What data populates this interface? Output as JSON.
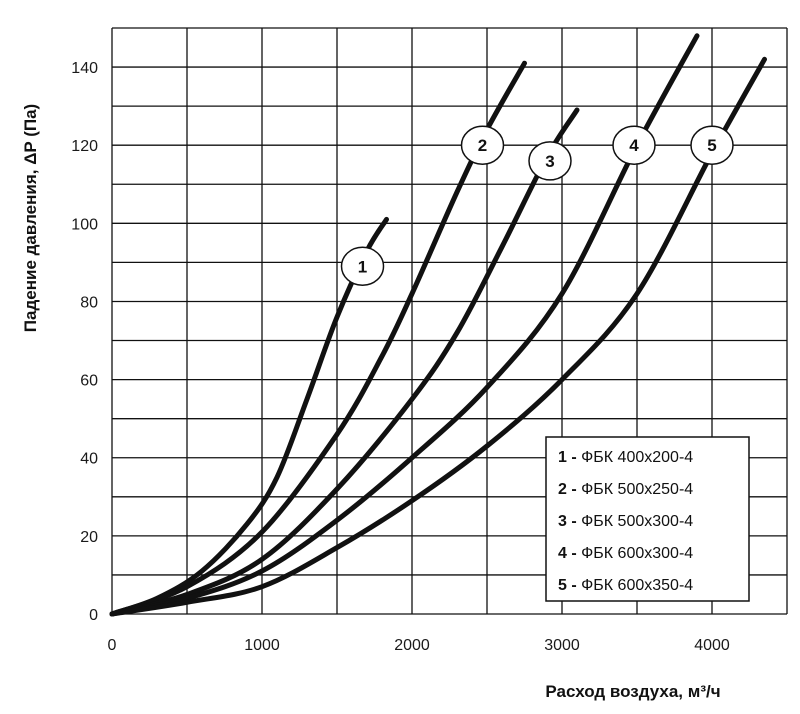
{
  "chart_data": {
    "type": "line",
    "xlabel": "Расход воздуха, м³/ч",
    "ylabel": "Падение давления, ΔP (Па)",
    "xlim": [
      0,
      4500
    ],
    "ylim": [
      0,
      150
    ],
    "x_ticks": [
      "0",
      "1000",
      "2000",
      "3000",
      "4000"
    ],
    "y_ticks": [
      "0",
      "20",
      "40",
      "60",
      "80",
      "100",
      "120",
      "140"
    ],
    "grid": true,
    "legend_position": "bottom-right",
    "series": [
      {
        "id": "1",
        "name": "ФБК 400x200-4",
        "points": [
          [
            0,
            0
          ],
          [
            300,
            4
          ],
          [
            600,
            11
          ],
          [
            900,
            23
          ],
          [
            1100,
            35
          ],
          [
            1300,
            55
          ],
          [
            1500,
            76
          ],
          [
            1700,
            93
          ],
          [
            1830,
            101
          ]
        ]
      },
      {
        "id": "2",
        "name": "ФБК 500x250-4",
        "points": [
          [
            0,
            0
          ],
          [
            500,
            7
          ],
          [
            1000,
            21
          ],
          [
            1500,
            46
          ],
          [
            1800,
            66
          ],
          [
            2000,
            82
          ],
          [
            2300,
            108
          ],
          [
            2500,
            124
          ],
          [
            2750,
            141
          ]
        ]
      },
      {
        "id": "3",
        "name": "ФБК 500x300-4",
        "points": [
          [
            0,
            0
          ],
          [
            500,
            5
          ],
          [
            1000,
            14
          ],
          [
            1500,
            32
          ],
          [
            2000,
            55
          ],
          [
            2300,
            72
          ],
          [
            2600,
            94
          ],
          [
            2900,
            117
          ],
          [
            3100,
            129
          ]
        ]
      },
      {
        "id": "4",
        "name": "ФБК 600x300-4",
        "points": [
          [
            0,
            0
          ],
          [
            500,
            4
          ],
          [
            1000,
            11
          ],
          [
            1500,
            24
          ],
          [
            2000,
            40
          ],
          [
            2500,
            58
          ],
          [
            3000,
            82
          ],
          [
            3500,
            120
          ],
          [
            3900,
            148
          ]
        ]
      },
      {
        "id": "5",
        "name": "ФБК 600x350-4",
        "points": [
          [
            0,
            0
          ],
          [
            500,
            3
          ],
          [
            1000,
            7
          ],
          [
            1500,
            17
          ],
          [
            2000,
            29
          ],
          [
            2500,
            43
          ],
          [
            3000,
            60
          ],
          [
            3500,
            82
          ],
          [
            4000,
            118
          ],
          [
            4350,
            142
          ]
        ]
      }
    ],
    "curve_labels": [
      "1",
      "2",
      "3",
      "4",
      "5"
    ],
    "legend": [
      {
        "num": "1 -",
        "text": "ФБК 400x200-4"
      },
      {
        "num": "2 -",
        "text": "ФБК 500x250-4"
      },
      {
        "num": "3 -",
        "text": "ФБК 500x300-4"
      },
      {
        "num": "4 -",
        "text": "ФБК 600x300-4"
      },
      {
        "num": "5 -",
        "text": "ФБК 600x350-4"
      }
    ]
  }
}
